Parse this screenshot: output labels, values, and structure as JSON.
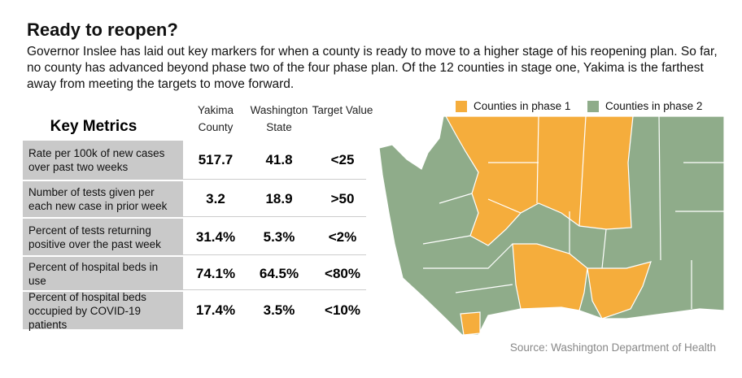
{
  "header": {
    "title": "Ready to reopen?",
    "subtitle": "Governor Inslee has laid out key markers for when a county is ready to move to a higher stage of his reopening plan.  So far, no county has advanced beyond phase two of the four phase plan.  Of the 12 counties in stage one, Yakima is the farthest away from meeting the targets to move forward."
  },
  "table": {
    "title": "Key Metrics",
    "columns": [
      "Yakima County",
      "Washington State",
      "Target Value"
    ],
    "rows": [
      {
        "label": "Rate per 100k of new cases over past two weeks",
        "values": [
          "517.7",
          "41.8",
          "<25"
        ]
      },
      {
        "label": "Number of tests given per each new case  in prior week",
        "values": [
          "3.2",
          "18.9",
          ">50"
        ]
      },
      {
        "label": "Percent of tests returning positive over the past week",
        "values": [
          "31.4%",
          "5.3%",
          "<2%"
        ]
      },
      {
        "label": "Percent of hospital beds in use",
        "values": [
          "74.1%",
          "64.5%",
          "<80%"
        ]
      },
      {
        "label": "Percent of hospital beds occupied by COVID-19 patients",
        "values": [
          "17.4%",
          "3.5%",
          "<10%"
        ]
      }
    ]
  },
  "map": {
    "legend": [
      {
        "label": "Counties in phase 1",
        "color": "#f5ad3c"
      },
      {
        "label": "Counties in phase 2",
        "color": "#8fac8a"
      }
    ],
    "source": "Source: Washington Department of Health"
  }
}
